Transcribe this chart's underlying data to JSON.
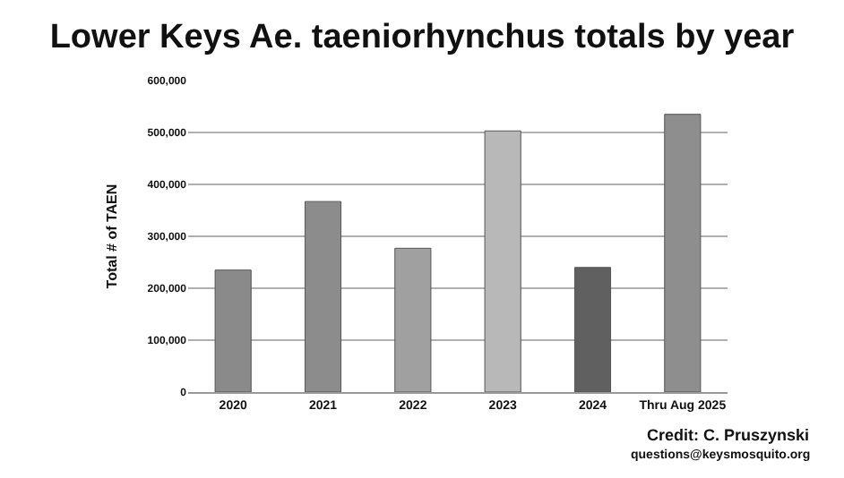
{
  "chart_data": {
    "type": "bar",
    "title": "Lower Keys Ae. taeniorhynchus totals by year",
    "ylabel": "Total # of TAEN",
    "categories": [
      "2020",
      "2021",
      "2022",
      "2023",
      "2024",
      "Thru Aug 2025"
    ],
    "values": [
      235000,
      367000,
      277000,
      503000,
      240000,
      535000
    ],
    "colors": [
      "#8a8a8a",
      "#8c8c8c",
      "#a0a0a0",
      "#b8b8b8",
      "#606060",
      "#8e8e8e"
    ],
    "ylim": [
      0,
      600000
    ],
    "yticks": [
      {
        "value": 0,
        "label": "0"
      },
      {
        "value": 100000,
        "label": "100,000"
      },
      {
        "value": 200000,
        "label": "200,000"
      },
      {
        "value": 300000,
        "label": "300,000"
      },
      {
        "value": 400000,
        "label": "400,000"
      },
      {
        "value": 500000,
        "label": "500,000"
      },
      {
        "value": 600000,
        "label": "600,000"
      }
    ],
    "grid": "y",
    "annotations": [
      "Credit: C. Pruszynski",
      "questions@keysmosquito.org"
    ]
  }
}
